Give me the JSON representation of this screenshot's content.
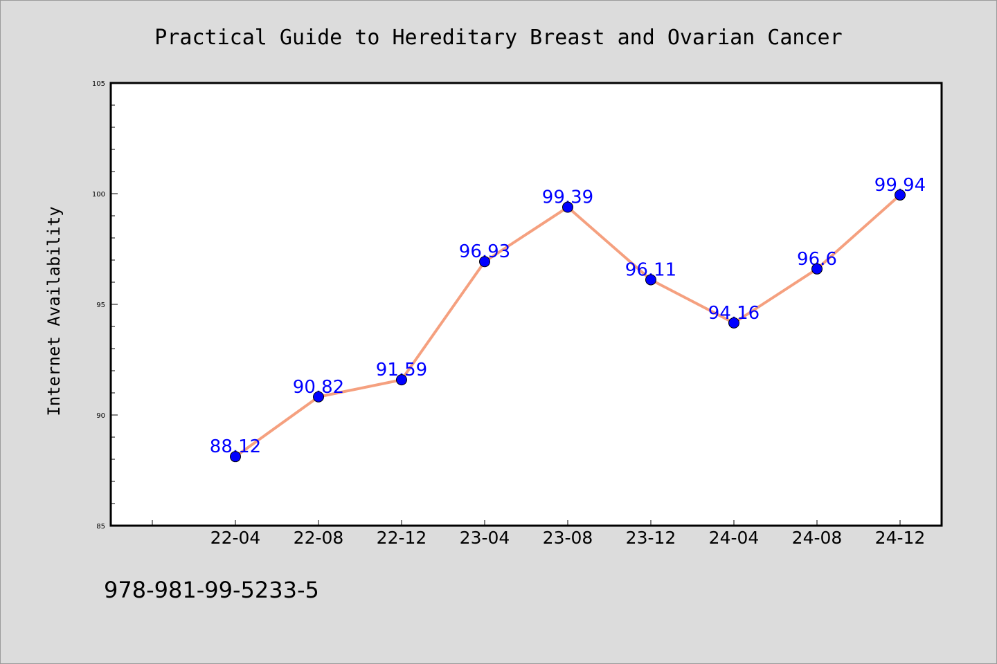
{
  "chart_data": {
    "type": "line",
    "title": "Practical Guide to Hereditary Breast and Ovarian Cancer",
    "xlabel": "",
    "ylabel": "Internet Availability",
    "categories": [
      "22-04",
      "22-08",
      "22-12",
      "23-04",
      "23-08",
      "23-12",
      "24-04",
      "24-08",
      "24-12"
    ],
    "series": [
      {
        "values": [
          88.12,
          90.82,
          91.59,
          96.93,
          99.39,
          96.11,
          94.16,
          96.6,
          99.94
        ],
        "labels": [
          "88.12",
          "90.82",
          "91.59",
          "96.93",
          "99.39",
          "96.11",
          "94.16",
          "96.6",
          "99.94"
        ]
      }
    ],
    "ylim": [
      85,
      105
    ],
    "yticks": [
      85,
      90,
      95,
      100,
      105
    ],
    "grid": false,
    "legend": "none",
    "colors": {
      "line": "#f5a07f",
      "marker": "#0000ff",
      "label": "#0000ff",
      "background": "#dcdcdc",
      "plot_background": "#ffffff"
    }
  },
  "footer": {
    "isbn": "978-981-99-5233-5"
  }
}
